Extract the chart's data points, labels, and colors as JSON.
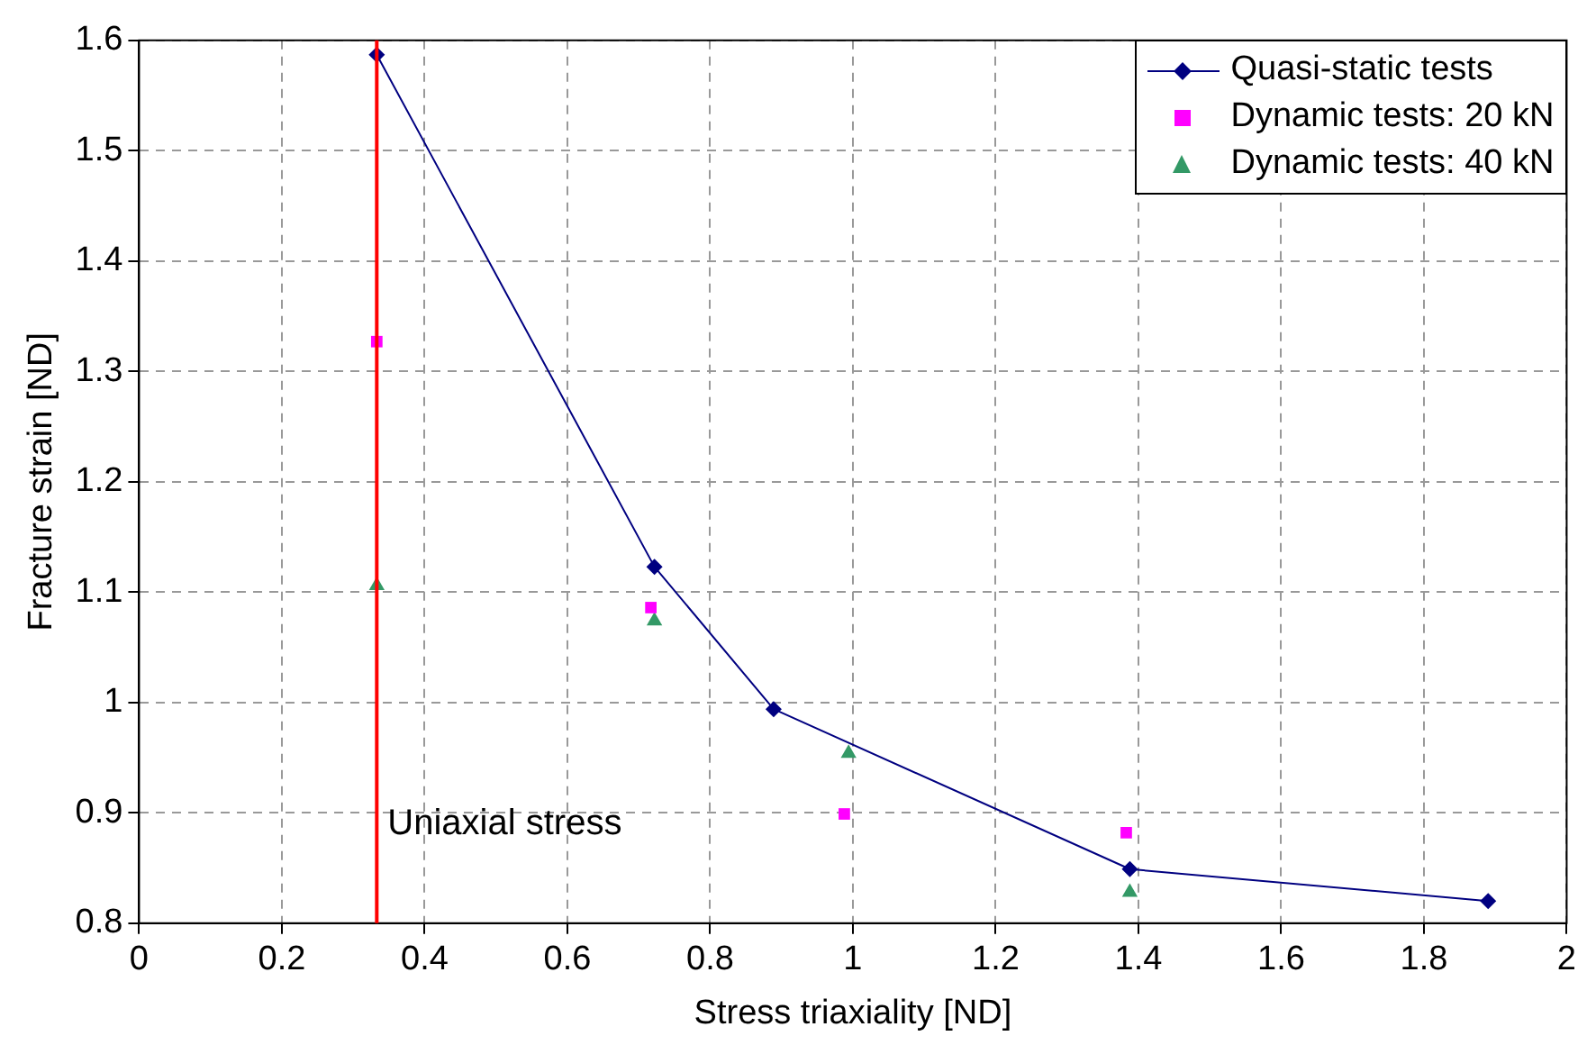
{
  "chart_data": {
    "type": "scatter",
    "xlabel": "Stress triaxiality [ND]",
    "ylabel": "Fracture strain [ND]",
    "xlim": [
      0,
      2
    ],
    "xticks": [
      0,
      0.2,
      0.4,
      0.6,
      0.8,
      1,
      1.2,
      1.4,
      1.6,
      1.8,
      2
    ],
    "ylim": [
      0.8,
      1.6
    ],
    "yticks": [
      0.8,
      0.9,
      1,
      1.1,
      1.2,
      1.3,
      1.4,
      1.5,
      1.6
    ],
    "grid": true,
    "legend": "top right",
    "series": [
      {
        "name": "Quasi-static tests",
        "type": "line",
        "color": "#000080",
        "marker": "diamond",
        "line_style": "solid",
        "x": [
          0.333,
          0.722,
          0.889,
          1.388,
          1.89
        ],
        "values": [
          1.587,
          1.123,
          0.994,
          0.849,
          0.82
        ]
      },
      {
        "name": "Dynamic tests: 20 kN",
        "type": "scatter",
        "color": "#ff00ff",
        "marker": "square",
        "x": [
          0.333,
          0.717,
          0.988,
          1.383
        ],
        "values": [
          1.327,
          1.086,
          0.899,
          0.882
        ]
      },
      {
        "name": "Dynamic tests: 40 kN",
        "type": "scatter",
        "color": "#339966",
        "marker": "triangle",
        "x": [
          0.333,
          0.722,
          0.994,
          1.388
        ],
        "values": [
          1.106,
          1.074,
          0.954,
          0.828
        ]
      }
    ],
    "ref_lines": [
      {
        "axis": "x",
        "value": 0.333,
        "label": "Uniaxial stress",
        "color": "#ff0000"
      }
    ]
  }
}
